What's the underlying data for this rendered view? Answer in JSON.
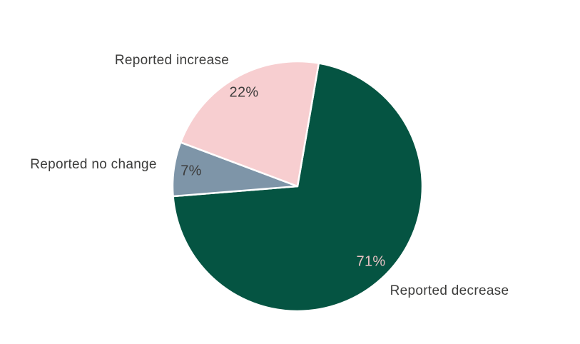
{
  "page": {
    "background_color": "#FFFFFF"
  },
  "chart_data": {
    "type": "pie",
    "title": "",
    "legend": "none",
    "direction": "clockwise",
    "start_angle_deg": 9.8,
    "label_color": "#3C3C3B",
    "gap_stroke": {
      "color": "#FFFFFF",
      "width": 2.5
    },
    "slices": [
      {
        "id": "reported-decrease",
        "label": "Reported decrease",
        "value": 71,
        "value_label": "71%",
        "color": "#055442",
        "value_label_color": "#E9C2C4"
      },
      {
        "id": "reported-no-change",
        "label": "Reported no change",
        "value": 7,
        "value_label": "7%",
        "color": "#7E95A8",
        "value_label_color": "#3C3C3B"
      },
      {
        "id": "reported-increase",
        "label": "Reported increase",
        "value": 22,
        "value_label": "22%",
        "color": "#F7CED0",
        "value_label_color": "#3C3C3B"
      }
    ]
  }
}
